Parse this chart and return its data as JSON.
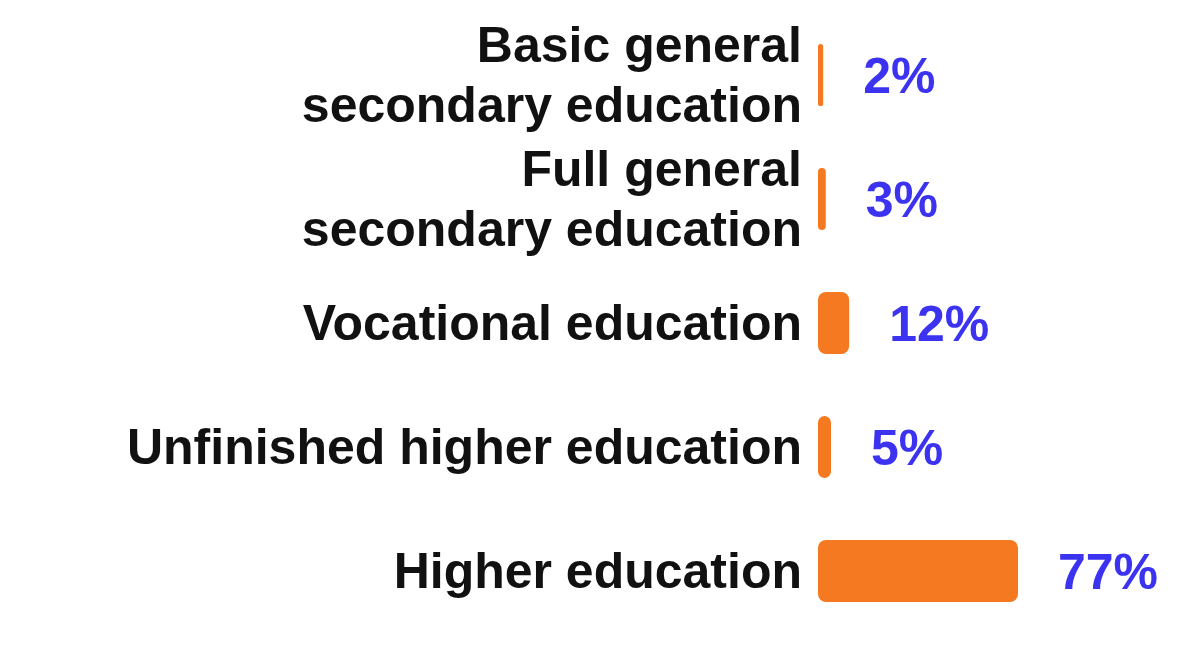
{
  "chart_data": {
    "type": "bar",
    "orientation": "horizontal",
    "categories": [
      "Basic general secondary education",
      "Full general secondary education",
      "Vocational education",
      "Unfinished higher education",
      "Higher education"
    ],
    "values": [
      2,
      3,
      12,
      5,
      77
    ],
    "value_labels": [
      "2%",
      "3%",
      "12%",
      "5%",
      "77%"
    ],
    "color": "#f47920",
    "grid": false,
    "legend": false
  }
}
